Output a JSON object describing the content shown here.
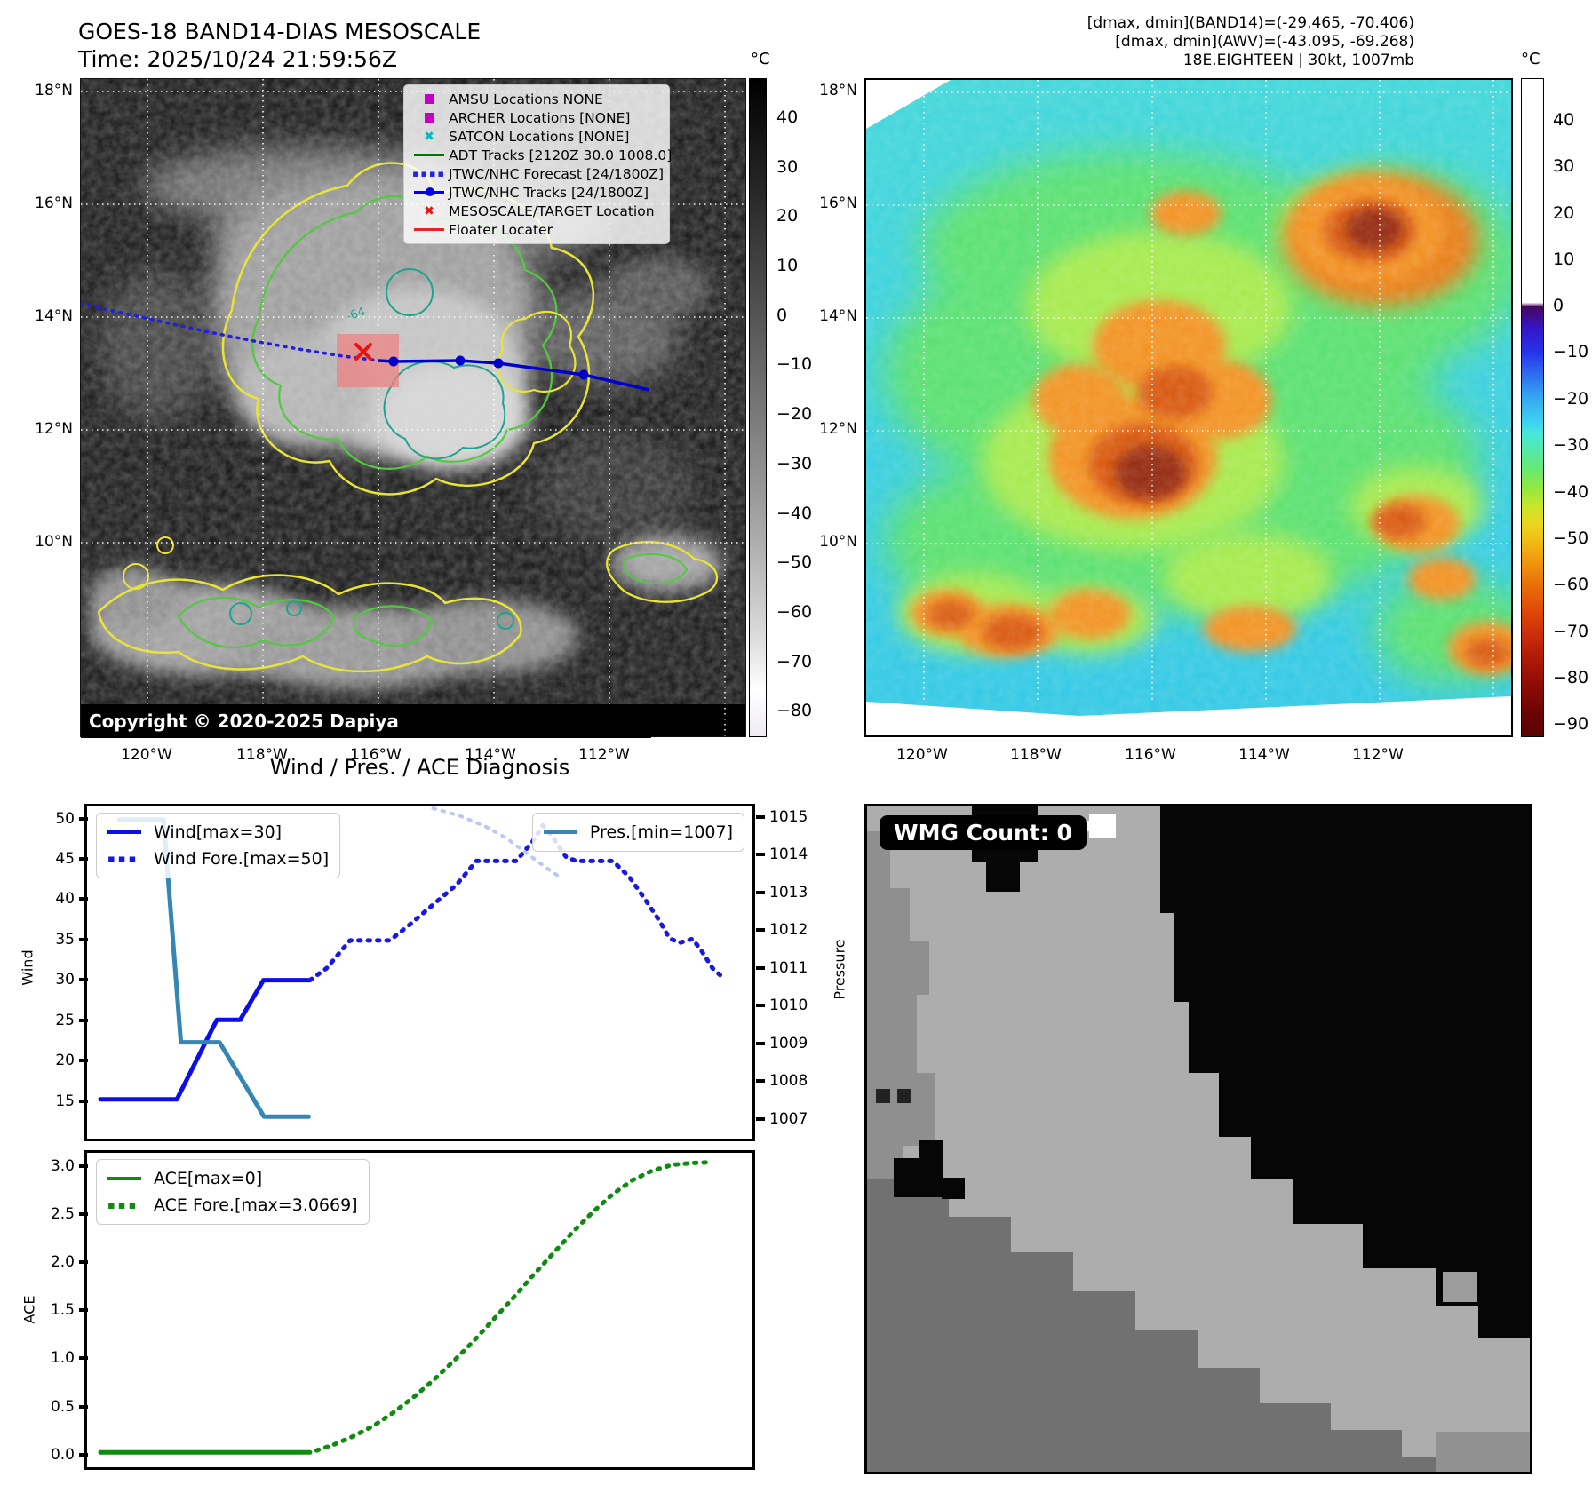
{
  "header": {
    "title_line1": "GOES-18 BAND14-DIAS MESOSCALE",
    "title_line2": "Time: 2025/10/24 21:59:56Z",
    "info_line1": "[dmax, dmin](BAND14)=(-29.465, -70.406)",
    "info_line2": "[dmax, dmin](AWV)=(-43.095, -69.268)",
    "info_line3": "18E.EIGHTEEN | 30kt, 1007mb"
  },
  "maps": {
    "lat_labels": [
      "18°N",
      "16°N",
      "14°N",
      "12°N",
      "10°N"
    ],
    "lon_labels": [
      "120°W",
      "118°W",
      "116°W",
      "114°W",
      "112°W"
    ],
    "left": {
      "copyright": "Copyright © 2020-2025 Dapiya",
      "contour_label": "-64",
      "colorbar": {
        "unit": "°C",
        "ticks": [
          "40",
          "30",
          "20",
          "10",
          "0",
          "−10",
          "−20",
          "−30",
          "−40",
          "−50",
          "−60",
          "−70",
          "−80"
        ]
      },
      "legend": {
        "items": [
          {
            "symbol": "square",
            "color": "#c400c4",
            "label": "AMSU Locations NONE"
          },
          {
            "symbol": "square",
            "color": "#c400c4",
            "label": "ARCHER Locations [NONE]"
          },
          {
            "symbol": "x",
            "color": "#00bcbc",
            "label": "SATCON Locations [NONE]"
          },
          {
            "symbol": "line",
            "color": "#007700",
            "label": "ADT Tracks [2120Z 30.0 1008.0]"
          },
          {
            "symbol": "dotted",
            "color": "#2222ee",
            "label": "JTWC/NHC Forecast [24/1800Z]"
          },
          {
            "symbol": "line-dot",
            "color": "#0000ee",
            "label": "JTWC/NHC Tracks [24/1800Z]"
          },
          {
            "symbol": "x",
            "color": "#ee1111",
            "label": "MESOSCALE/TARGET Location"
          },
          {
            "symbol": "line",
            "color": "#ee2222",
            "label": "Floater Locater"
          }
        ]
      }
    },
    "right": {
      "colorbar": {
        "unit": "°C",
        "ticks": [
          "40",
          "30",
          "20",
          "10",
          "0",
          "−10",
          "−20",
          "−30",
          "−40",
          "−50",
          "−60",
          "−70",
          "−80",
          "−90"
        ]
      }
    }
  },
  "wmg": {
    "count_label": "WMG Count: 0"
  },
  "chart_data": [
    {
      "type": "line",
      "title": "Wind / Pres. / ACE Diagnosis",
      "xlim": [
        0,
        100
      ],
      "grid": false,
      "legend_position": "upper left / upper right",
      "ylabel_left": "Wind",
      "ylabel_right": "Pressure",
      "yticks_left": [
        "50",
        "45",
        "40",
        "35",
        "30",
        "25",
        "20",
        "15"
      ],
      "yticks_right": [
        "1015",
        "1014",
        "1013",
        "1012",
        "1011",
        "1010",
        "1009",
        "1008",
        "1007"
      ],
      "ylim_left": [
        10.05,
        51.87
      ],
      "ylim_right": [
        1006.41,
        1015.35
      ],
      "series": [
        {
          "name": "Wind[max=30]",
          "axis": "left",
          "style": "solid",
          "color": "#0d0de8",
          "width": 5,
          "points": [
            [
              2,
              15
            ],
            [
              13.5,
              15
            ],
            [
              19.5,
              25
            ],
            [
              23,
              25
            ],
            [
              26.5,
              30
            ],
            [
              33.5,
              30
            ]
          ]
        },
        {
          "name": "Wind Fore.[max=50]",
          "axis": "left",
          "style": "dotted",
          "color": "#1717e8",
          "width": 5,
          "points": [
            [
              33.5,
              30
            ],
            [
              36,
              31.5
            ],
            [
              39.5,
              35
            ],
            [
              45.5,
              35
            ],
            [
              48.5,
              37
            ],
            [
              52,
              39.5
            ],
            [
              55.5,
              42
            ],
            [
              58.5,
              45
            ],
            [
              64.5,
              45
            ],
            [
              67,
              47.5
            ],
            [
              68.5,
              49.5
            ],
            [
              70,
              48
            ],
            [
              72,
              45.5
            ],
            [
              73.5,
              45
            ],
            [
              79,
              45
            ],
            [
              81.5,
              43
            ],
            [
              84,
              40
            ],
            [
              86,
              37.5
            ],
            [
              87.5,
              35.3
            ],
            [
              89,
              34.7
            ],
            [
              91,
              35.2
            ],
            [
              92.5,
              33.5
            ],
            [
              94,
              31.5
            ],
            [
              95.2,
              30.6
            ]
          ]
        },
        {
          "name": "Pres.[min=1007]",
          "axis": "right",
          "style": "solid",
          "color": "#3585b5",
          "width": 5,
          "points": [
            [
              4.8,
              1015
            ],
            [
              11.5,
              1015
            ],
            [
              14.1,
              1009
            ],
            [
              19.9,
              1009
            ],
            [
              26.6,
              1007
            ],
            [
              33.3,
              1007
            ]
          ]
        },
        {
          "name": "Pres. Fore.",
          "axis": "right",
          "style": "dotted",
          "color": "#bfc6f2",
          "width": 4,
          "points": [
            [
              52,
              1015.3
            ],
            [
              56,
              1015.1
            ],
            [
              60,
              1014.8
            ],
            [
              63,
              1014.5
            ],
            [
              66,
              1014.1
            ],
            [
              69,
              1013.7
            ],
            [
              71.5,
              1013.4
            ]
          ]
        }
      ]
    },
    {
      "type": "line",
      "xlim": [
        0,
        100
      ],
      "grid": false,
      "ylabel_left": "ACE",
      "yticks_left": [
        "3.0",
        "2.5",
        "2.0",
        "1.5",
        "1.0",
        "0.5",
        "0.0"
      ],
      "ylim_left": [
        -0.157,
        3.167
      ],
      "series": [
        {
          "name": "ACE[max=0]",
          "axis": "left",
          "style": "solid",
          "color": "#0f8c0f",
          "width": 5,
          "points": [
            [
              2,
              0
            ],
            [
              33.5,
              0
            ]
          ]
        },
        {
          "name": "ACE Fore.[max=3.0669]",
          "axis": "left",
          "style": "dotted",
          "color": "#0f8c0f",
          "width": 5,
          "points": [
            [
              34.5,
              0.02
            ],
            [
              37,
              0.08
            ],
            [
              40,
              0.17
            ],
            [
              43,
              0.28
            ],
            [
              46,
              0.42
            ],
            [
              49,
              0.58
            ],
            [
              52,
              0.76
            ],
            [
              55,
              0.96
            ],
            [
              58,
              1.17
            ],
            [
              61,
              1.4
            ],
            [
              64,
              1.63
            ],
            [
              67,
              1.87
            ],
            [
              70,
              2.1
            ],
            [
              73,
              2.33
            ],
            [
              76,
              2.54
            ],
            [
              79,
              2.73
            ],
            [
              82,
              2.88
            ],
            [
              85,
              2.98
            ],
            [
              88,
              3.04
            ],
            [
              91,
              3.06
            ],
            [
              93.5,
              3.0669
            ]
          ]
        }
      ]
    }
  ]
}
